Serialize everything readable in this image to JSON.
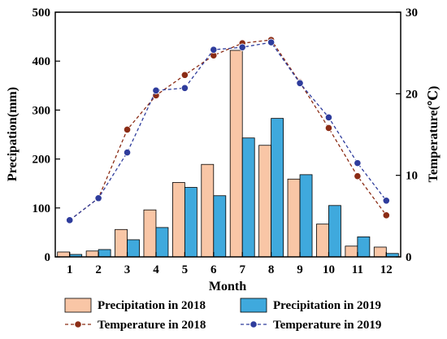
{
  "chart_data": {
    "type": "bar",
    "title": "",
    "xlabel": "Month",
    "ylabel": "Precipation(mm)",
    "y2label": "Temperature(℃)",
    "categories": [
      "1",
      "2",
      "3",
      "4",
      "5",
      "6",
      "7",
      "8",
      "9",
      "10",
      "11",
      "12"
    ],
    "ylim": [
      0,
      500
    ],
    "y2lim": [
      0,
      30
    ],
    "yticks": [
      "0",
      "100",
      "200",
      "300",
      "400",
      "500"
    ],
    "y2ticks": [
      "0",
      "10",
      "20",
      "30"
    ],
    "grid": false,
    "legend_position": "bottom",
    "series": [
      {
        "name": "Precipitation in 2018",
        "kind": "bar",
        "axis": "left",
        "color": "#F9C6A6",
        "values": [
          10,
          12,
          56,
          96,
          152,
          189,
          422,
          228,
          159,
          67,
          22,
          20
        ]
      },
      {
        "name": "Precipitation in 2019",
        "kind": "bar",
        "axis": "left",
        "color": "#3FA9DD",
        "values": [
          5,
          15,
          35,
          60,
          142,
          125,
          243,
          283,
          168,
          105,
          41,
          7
        ]
      },
      {
        "name": "Temperature in 2018",
        "kind": "line",
        "axis": "right",
        "color": "#8B2C15",
        "values": [
          4.5,
          7.2,
          15.6,
          19.8,
          22.3,
          24.7,
          26.2,
          26.6,
          21.4,
          15.8,
          9.9,
          5.1
        ]
      },
      {
        "name": "Temperature in 2019",
        "kind": "line",
        "axis": "right",
        "color": "#2E3C9C",
        "values": [
          4.5,
          7.2,
          12.8,
          20.4,
          20.7,
          25.4,
          25.7,
          26.3,
          21.3,
          17.1,
          11.5,
          6.9
        ]
      }
    ]
  }
}
